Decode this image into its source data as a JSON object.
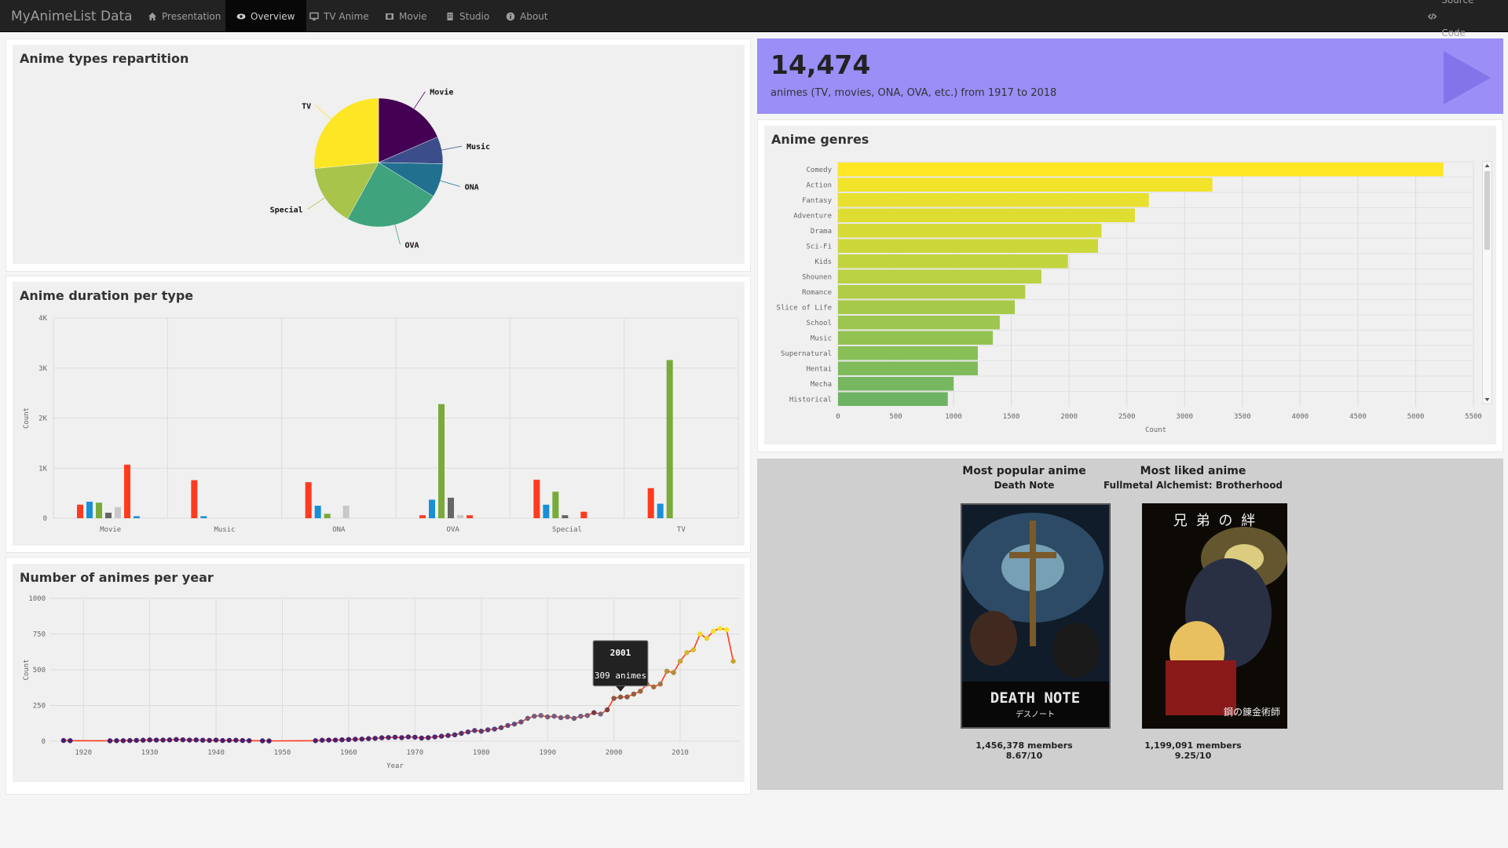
{
  "nav": {
    "brand": "MyAnimeList Data",
    "items": [
      {
        "label": "Presentation",
        "icon": "home-icon"
      },
      {
        "label": "Overview",
        "icon": "eye-icon"
      },
      {
        "label": "TV Anime",
        "icon": "monitor-icon"
      },
      {
        "label": "Movie",
        "icon": "film-icon"
      },
      {
        "label": "Studio",
        "icon": "building-icon"
      },
      {
        "label": "About",
        "icon": "info-icon"
      }
    ],
    "source": {
      "label": "Source Code",
      "icon": "code-icon"
    }
  },
  "value_box": {
    "number": "14,474",
    "subtitle": "animes (TV, movies, ONA, OVA, etc.) from 1917 to 2018",
    "icon": "play-icon",
    "color": "#9a8ff7"
  },
  "types_panel": {
    "title": "Anime types repartition"
  },
  "duration_panel": {
    "title": "Anime duration per type"
  },
  "year_panel": {
    "title": "Number of animes per year"
  },
  "genres_panel": {
    "title": "Anime genres"
  },
  "favorites": {
    "popular": {
      "heading": "Most popular anime",
      "name": "Death Note",
      "members": "1,456,378 members",
      "score": "8.67/10",
      "poster_title": "DEATH NOTE",
      "poster_sub": "デスノート"
    },
    "liked": {
      "heading": "Most liked anime",
      "name": "Fullmetal Alchemist: Brotherhood",
      "members": "1,199,091 members",
      "score": "9.25/10",
      "poster_title": "兄 弟 の 絆",
      "poster_sub": "鋼の錬金術師"
    }
  },
  "chart_data": [
    {
      "type": "pie",
      "title": "Anime types repartition",
      "labels": [
        "Movie",
        "Music",
        "ONA",
        "OVA",
        "Special",
        "TV"
      ],
      "values": [
        18.5,
        6.8,
        8.5,
        24.2,
        15.5,
        26.5
      ],
      "colors": [
        "#440154",
        "#3b4d8a",
        "#21708f",
        "#3fa47d",
        "#a8c44a",
        "#fde725"
      ]
    },
    {
      "type": "bar",
      "title": "Anime duration per type",
      "ylabel": "Count",
      "categories": [
        "Movie",
        "Music",
        "ONA",
        "OVA",
        "Special",
        "TV"
      ],
      "ylim": [
        0,
        4000
      ],
      "yticks": [
        "0",
        "1K",
        "2K",
        "3K",
        "4K"
      ],
      "series": [
        {
          "color": "#ff3b1f",
          "values": [
            270,
            760,
            720,
            60,
            770,
            600
          ]
        },
        {
          "color": "#1a8fd6",
          "values": [
            330,
            40,
            250,
            370,
            270,
            290
          ]
        },
        {
          "color": "#79aa3a",
          "values": [
            310,
            0,
            90,
            2280,
            530,
            3160
          ]
        },
        {
          "color": "#666666",
          "values": [
            110,
            0,
            0,
            410,
            60,
            0
          ]
        },
        {
          "color": "#c8c8c8",
          "values": [
            220,
            0,
            250,
            60,
            0,
            0
          ]
        },
        {
          "color": "#ff3b1f",
          "values": [
            1070,
            0,
            0,
            60,
            130,
            0
          ]
        },
        {
          "color": "#1a8fd6",
          "values": [
            40,
            0,
            0,
            0,
            0,
            0
          ]
        }
      ]
    },
    {
      "type": "line",
      "title": "Number of animes per year",
      "xlabel": "Year",
      "ylabel": "Count",
      "xticks": [
        1920,
        1930,
        1940,
        1950,
        1960,
        1970,
        1980,
        1990,
        2000,
        2010
      ],
      "yticks": [
        0,
        250,
        500,
        750,
        1000
      ],
      "xlim": [
        1915,
        2019
      ],
      "ylim": [
        0,
        1000
      ],
      "x": [
        1917,
        1918,
        1924,
        1925,
        1926,
        1927,
        1928,
        1929,
        1930,
        1931,
        1932,
        1933,
        1934,
        1935,
        1936,
        1937,
        1938,
        1939,
        1940,
        1941,
        1942,
        1943,
        1944,
        1945,
        1947,
        1948,
        1955,
        1956,
        1957,
        1958,
        1959,
        1960,
        1961,
        1962,
        1963,
        1964,
        1965,
        1966,
        1967,
        1968,
        1969,
        1970,
        1971,
        1972,
        1973,
        1974,
        1975,
        1976,
        1977,
        1978,
        1979,
        1980,
        1981,
        1982,
        1983,
        1984,
        1985,
        1986,
        1987,
        1988,
        1989,
        1990,
        1991,
        1992,
        1993,
        1994,
        1995,
        1996,
        1997,
        1998,
        1999,
        2000,
        2001,
        2002,
        2003,
        2004,
        2005,
        2006,
        2007,
        2008,
        2009,
        2010,
        2011,
        2012,
        2013,
        2014,
        2015,
        2016,
        2017,
        2018
      ],
      "y": [
        5,
        4,
        3,
        4,
        4,
        5,
        6,
        7,
        9,
        8,
        8,
        9,
        12,
        10,
        8,
        9,
        7,
        6,
        8,
        5,
        6,
        7,
        5,
        4,
        3,
        2,
        4,
        7,
        8,
        8,
        10,
        12,
        14,
        15,
        18,
        20,
        24,
        26,
        28,
        25,
        30,
        28,
        22,
        25,
        30,
        35,
        40,
        45,
        55,
        65,
        75,
        70,
        80,
        85,
        95,
        110,
        120,
        135,
        160,
        175,
        180,
        170,
        175,
        165,
        170,
        160,
        175,
        180,
        200,
        190,
        220,
        300,
        309,
        310,
        330,
        350,
        400,
        380,
        400,
        490,
        480,
        560,
        620,
        640,
        750,
        720,
        770,
        790,
        780,
        560
      ],
      "tooltip": {
        "year": "2001",
        "text": "309 animes"
      }
    },
    {
      "type": "bar",
      "title": "Anime genres",
      "xlabel": "Count",
      "categories": [
        "Comedy",
        "Action",
        "Fantasy",
        "Adventure",
        "Drama",
        "Sci-Fi",
        "Kids",
        "Shounen",
        "Romance",
        "Slice of Life",
        "School",
        "Music",
        "Supernatural",
        "Hentai",
        "Mecha",
        "Historical"
      ],
      "values": [
        5240,
        3240,
        2690,
        2570,
        2280,
        2250,
        1990,
        1760,
        1620,
        1530,
        1400,
        1340,
        1210,
        1210,
        1000,
        950
      ],
      "xticks": [
        0,
        500,
        1000,
        1500,
        2000,
        2500,
        3000,
        3500,
        4000,
        4500,
        5000,
        5500
      ],
      "xlim": [
        0,
        5500
      ],
      "colors": [
        "#fde725",
        "#f1e22a",
        "#e8e02e",
        "#dedd32",
        "#d5da36",
        "#ccd73a",
        "#c2d43d",
        "#bad141",
        "#b0cd45",
        "#a6c949",
        "#9dc64e",
        "#93c252",
        "#89bf57",
        "#80bb5b",
        "#76b75f",
        "#6db363"
      ]
    }
  ]
}
